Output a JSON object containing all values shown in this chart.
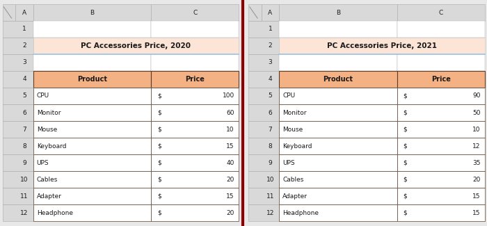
{
  "sheet1_title": "PC Accessories Price, 2020",
  "sheet2_title": "PC Accessories Price, 2021",
  "products": [
    "CPU",
    "Monitor",
    "Mouse",
    "Keyboard",
    "UPS",
    "Cables",
    "Adapter",
    "Headphone"
  ],
  "prices_2020": [
    100,
    60,
    10,
    15,
    40,
    20,
    15,
    20
  ],
  "prices_2021": [
    90,
    50,
    10,
    12,
    35,
    20,
    15,
    15
  ],
  "bg_color": "#e8e8e8",
  "title_fill": "#fce4d6",
  "header_fill": "#f4b183",
  "cell_fill_white": "#ffffff",
  "title_underline_color": "#9dc3e6",
  "row_col_header_color": "#d9d9d9",
  "divider_color": "#8B0000",
  "text_color": "#1a1a1a",
  "border_dark": "#5a3e2b",
  "border_light": "#aaaaaa",
  "font_size": 6.5,
  "header_font_size": 7.0,
  "title_font_size": 7.5
}
